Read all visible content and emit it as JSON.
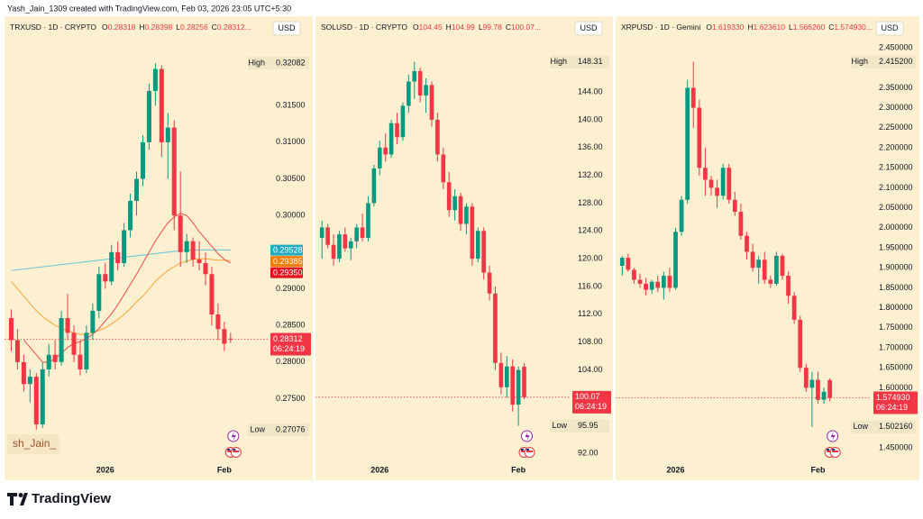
{
  "attribution": "Yash_Jain_1309 created with TradingView.com, Feb 03, 2026 23:05 UTC+5:30",
  "brand": "TradingView",
  "chart_data": [
    {
      "type": "candlestick",
      "symbol": "TRXUSD · 1D · CRYPTO",
      "quote": [
        {
          "label": "O",
          "text": "0.28318"
        },
        {
          "label": "H",
          "text": "0.28398"
        },
        {
          "label": "L",
          "text": "0.28256"
        },
        {
          "label": "C",
          "text": "0.28312..."
        }
      ],
      "currency": "USD",
      "watermark": "sh_Jain_",
      "up_color": "#089981",
      "down_color": "#f23645",
      "categories": [
        null,
        null,
        null,
        null,
        null,
        null,
        null,
        null,
        null,
        null,
        null,
        null,
        null,
        null,
        null,
        "2026",
        null,
        null,
        null,
        null,
        null,
        null,
        null,
        null,
        null,
        null,
        null,
        null,
        null,
        null,
        null,
        null,
        null,
        null,
        "Feb",
        null
      ],
      "ohlc": [
        [
          0.286,
          0.2872,
          0.2815,
          0.283
        ],
        [
          0.283,
          0.2845,
          0.279,
          0.28
        ],
        [
          0.28,
          0.281,
          0.276,
          0.277
        ],
        [
          0.277,
          0.279,
          0.2745,
          0.278
        ],
        [
          0.278,
          0.2785,
          0.2708,
          0.2715
        ],
        [
          0.2715,
          0.28,
          0.271,
          0.279
        ],
        [
          0.279,
          0.2825,
          0.278,
          0.281
        ],
        [
          0.281,
          0.283,
          0.279,
          0.28
        ],
        [
          0.28,
          0.287,
          0.2795,
          0.286
        ],
        [
          0.286,
          0.2893,
          0.283,
          0.284
        ],
        [
          0.284,
          0.285,
          0.28,
          0.281
        ],
        [
          0.281,
          0.283,
          0.2782,
          0.279
        ],
        [
          0.279,
          0.285,
          0.2785,
          0.284
        ],
        [
          0.284,
          0.288,
          0.283,
          0.287
        ],
        [
          0.287,
          0.293,
          0.286,
          0.292
        ],
        [
          0.292,
          0.2935,
          0.29,
          0.291
        ],
        [
          0.291,
          0.296,
          0.2905,
          0.295
        ],
        [
          0.295,
          0.2965,
          0.2925,
          0.2935
        ],
        [
          0.2935,
          0.299,
          0.293,
          0.298
        ],
        [
          0.298,
          0.303,
          0.297,
          0.302
        ],
        [
          0.302,
          0.306,
          0.3,
          0.305
        ],
        [
          0.305,
          0.311,
          0.304,
          0.31
        ],
        [
          0.31,
          0.318,
          0.309,
          0.317
        ],
        [
          0.317,
          0.3208,
          0.315,
          0.32
        ],
        [
          0.32,
          0.3205,
          0.308,
          0.31
        ],
        [
          0.31,
          0.314,
          0.305,
          0.312
        ],
        [
          0.312,
          0.313,
          0.298,
          0.3
        ],
        [
          0.3,
          0.306,
          0.293,
          0.295
        ],
        [
          0.295,
          0.2975,
          0.2935,
          0.2965
        ],
        [
          0.2965,
          0.297,
          0.293,
          0.294
        ],
        [
          0.294,
          0.2965,
          0.2925,
          0.2935
        ],
        [
          0.2935,
          0.295,
          0.2905,
          0.292
        ],
        [
          0.292,
          0.293,
          0.285,
          0.2865
        ],
        [
          0.2865,
          0.288,
          0.283,
          0.2845
        ],
        [
          0.2845,
          0.2855,
          0.2815,
          0.2825
        ],
        [
          0.2832,
          0.284,
          0.2826,
          0.2831
        ]
      ],
      "lines": [
        {
          "color": "#5fc6d6",
          "values": [
            0.2925,
            0.2926,
            0.2927,
            0.2928,
            0.2929,
            0.293,
            0.2931,
            0.2932,
            0.2933,
            0.2934,
            0.2935,
            0.2936,
            0.2937,
            0.2938,
            0.2939,
            0.294,
            0.2941,
            0.2942,
            0.2943,
            0.2944,
            0.2945,
            0.2946,
            0.2947,
            0.2948,
            0.2949,
            0.295,
            0.2951,
            0.2952,
            0.2953,
            0.2953,
            0.2953,
            0.2953,
            0.2953,
            0.2953,
            0.2953,
            0.29528
          ]
        },
        {
          "color": "#f7a43a",
          "values": [
            0.291,
            0.29,
            0.289,
            0.288,
            0.287,
            0.2862,
            0.2856,
            0.285,
            0.2846,
            0.2843,
            0.284,
            0.2838,
            0.2838,
            0.284,
            0.2843,
            0.2847,
            0.2852,
            0.2858,
            0.2865,
            0.2873,
            0.2882,
            0.289,
            0.29,
            0.291,
            0.2918,
            0.2925,
            0.293,
            0.2935,
            0.2938,
            0.294,
            0.2941,
            0.2941,
            0.294,
            0.2939,
            0.2939,
            0.29385
          ]
        },
        {
          "color": "#ef4a4a",
          "values": [
            null,
            null,
            0.283,
            0.282,
            0.281,
            0.28,
            0.28,
            0.2805,
            0.2812,
            0.282,
            0.2825,
            0.2828,
            0.2832,
            0.2838,
            0.2846,
            0.2856,
            0.2866,
            0.2878,
            0.2892,
            0.2906,
            0.292,
            0.2935,
            0.295,
            0.2965,
            0.2978,
            0.299,
            0.2998,
            0.3003,
            0.3,
            0.299,
            0.2978,
            0.2968,
            0.2958,
            0.2948,
            0.294,
            0.2935
          ]
        }
      ],
      "badges": [
        {
          "value": 0.29528,
          "color": "#22abc3"
        },
        {
          "value": 0.29385,
          "color": "#f57c00"
        },
        {
          "value": 0.2935,
          "value_label": "0.29350",
          "color": "#e4121f"
        }
      ],
      "high": {
        "label": "High",
        "value": 0.32082
      },
      "low": {
        "label": "Low",
        "value": 0.27076
      },
      "last_price": {
        "value": 0.28312,
        "countdown": "06:24:19",
        "color": "#f23645"
      },
      "ylim": [
        0.2667,
        0.3272
      ],
      "yticks": [
        {
          "value": 0.275,
          "label": "0.27500"
        },
        {
          "value": 0.28,
          "label": "0.28000"
        },
        {
          "value": 0.285,
          "label": "0.28500"
        },
        {
          "value": 0.29,
          "label": "0.29000"
        },
        {
          "value": 0.3,
          "label": "0.30000"
        },
        {
          "value": 0.305,
          "label": "0.30500"
        },
        {
          "value": 0.31,
          "label": "0.31000"
        },
        {
          "value": 0.315,
          "label": "0.31500"
        }
      ]
    },
    {
      "type": "candlestick",
      "symbol": "SOLUSD · 1D · CRYPTO",
      "quote": [
        {
          "label": "O",
          "text": "104.45"
        },
        {
          "label": "H",
          "text": "104.99"
        },
        {
          "label": "L",
          "text": "99.78"
        },
        {
          "label": "C",
          "text": "100.07..."
        }
      ],
      "currency": "USD",
      "up_color": "#089981",
      "down_color": "#f23645",
      "categories": [
        null,
        null,
        null,
        null,
        null,
        null,
        null,
        null,
        null,
        null,
        "2026",
        null,
        null,
        null,
        null,
        null,
        null,
        null,
        null,
        null,
        null,
        null,
        null,
        null,
        null,
        null,
        null,
        null,
        null,
        null,
        null,
        null,
        null,
        null,
        "Feb",
        null
      ],
      "ohlc": [
        [
          123.0,
          125.5,
          120.0,
          124.5
        ],
        [
          124.5,
          125.0,
          121.5,
          122.0
        ],
        [
          122.0,
          123.5,
          119.0,
          120.0
        ],
        [
          120.0,
          124.0,
          119.5,
          123.5
        ],
        [
          123.5,
          124.5,
          121.0,
          121.5
        ],
        [
          121.5,
          123.0,
          119.8,
          122.5
        ],
        [
          122.5,
          125.0,
          121.5,
          124.5
        ],
        [
          124.5,
          126.5,
          122.5,
          123.0
        ],
        [
          123.0,
          129.0,
          122.5,
          128.0
        ],
        [
          128.0,
          133.5,
          127.5,
          133.0
        ],
        [
          133.0,
          137.0,
          132.0,
          136.0
        ],
        [
          136.0,
          138.0,
          134.0,
          135.0
        ],
        [
          135.0,
          140.0,
          134.5,
          139.5
        ],
        [
          139.5,
          141.0,
          136.5,
          137.5
        ],
        [
          137.5,
          142.5,
          137.0,
          142.0
        ],
        [
          142.0,
          146.5,
          141.0,
          145.5
        ],
        [
          145.5,
          148.31,
          143.0,
          147.0
        ],
        [
          147.0,
          147.5,
          142.5,
          143.5
        ],
        [
          143.5,
          146.0,
          141.0,
          145.0
        ],
        [
          145.0,
          145.5,
          139.0,
          140.0
        ],
        [
          140.0,
          141.0,
          134.0,
          135.0
        ],
        [
          135.0,
          136.0,
          130.0,
          131.0
        ],
        [
          131.0,
          132.5,
          126.0,
          127.0
        ],
        [
          127.0,
          130.0,
          125.5,
          129.0
        ],
        [
          129.0,
          129.5,
          124.0,
          125.0
        ],
        [
          125.0,
          128.0,
          123.5,
          127.5
        ],
        [
          127.5,
          128.0,
          119.0,
          120.0
        ],
        [
          120.0,
          124.5,
          119.5,
          124.0
        ],
        [
          124.0,
          124.5,
          117.0,
          118.0
        ],
        [
          118.0,
          119.0,
          114.0,
          115.0
        ],
        [
          115.0,
          116.0,
          104.0,
          105.0
        ],
        [
          105.0,
          106.5,
          100.5,
          101.5
        ],
        [
          101.5,
          106.0,
          100.0,
          104.5
        ],
        [
          104.5,
          105.5,
          98.0,
          99.0
        ],
        [
          99.0,
          104.5,
          95.95,
          104.0
        ],
        [
          104.45,
          104.99,
          99.78,
          100.07
        ]
      ],
      "high": {
        "label": "High",
        "value": 148.31
      },
      "low": {
        "label": "Low",
        "value": 95.95
      },
      "last_price": {
        "value": 100.07,
        "countdown": "06:24:19",
        "color": "#f23645"
      },
      "ylim": [
        91.1,
        154.9
      ],
      "yticks": [
        {
          "value": 92,
          "label": "92.00"
        },
        {
          "value": 104,
          "label": "104.00"
        },
        {
          "value": 108,
          "label": "108.00"
        },
        {
          "value": 112,
          "label": "112.00"
        },
        {
          "value": 116,
          "label": "116.00"
        },
        {
          "value": 120,
          "label": "120.00"
        },
        {
          "value": 124,
          "label": "124.00"
        },
        {
          "value": 128,
          "label": "128.00"
        },
        {
          "value": 132,
          "label": "132.00"
        },
        {
          "value": 136,
          "label": "136.00"
        },
        {
          "value": 140,
          "label": "140.00"
        },
        {
          "value": 144,
          "label": "144.00"
        }
      ]
    },
    {
      "type": "candlestick",
      "symbol": "XRPUSD · 1D · Gemini",
      "quote": [
        {
          "label": "O",
          "text": "1.619330"
        },
        {
          "label": "H",
          "text": "1.623610"
        },
        {
          "label": "L",
          "text": "1.566260"
        },
        {
          "label": "C",
          "text": "1.574930..."
        }
      ],
      "currency": "USD",
      "up_color": "#089981",
      "down_color": "#f23645",
      "categories": [
        null,
        null,
        null,
        null,
        null,
        null,
        null,
        null,
        null,
        "2026",
        null,
        null,
        null,
        null,
        null,
        null,
        null,
        null,
        null,
        null,
        null,
        null,
        null,
        null,
        null,
        null,
        null,
        null,
        null,
        null,
        null,
        null,
        null,
        "Feb",
        null,
        null
      ],
      "ohlc": [
        [
          1.905,
          1.93,
          1.88,
          1.925
        ],
        [
          1.925,
          1.935,
          1.89,
          1.895
        ],
        [
          1.895,
          1.9,
          1.86,
          1.87
        ],
        [
          1.87,
          1.885,
          1.85,
          1.86
        ],
        [
          1.86,
          1.875,
          1.83,
          1.845
        ],
        [
          1.845,
          1.87,
          1.835,
          1.865
        ],
        [
          1.865,
          1.88,
          1.84,
          1.85
        ],
        [
          1.85,
          1.89,
          1.82,
          1.88
        ],
        [
          1.88,
          1.9,
          1.84,
          1.85
        ],
        [
          1.85,
          2.0,
          1.845,
          1.99
        ],
        [
          1.99,
          2.08,
          1.98,
          2.07
        ],
        [
          2.07,
          2.37,
          2.06,
          2.35
        ],
        [
          2.35,
          2.4152,
          2.25,
          2.3
        ],
        [
          2.3,
          2.32,
          2.13,
          2.15
        ],
        [
          2.15,
          2.2,
          2.08,
          2.12
        ],
        [
          2.12,
          2.13,
          2.08,
          2.1
        ],
        [
          2.1,
          2.12,
          2.05,
          2.08
        ],
        [
          2.08,
          2.16,
          2.07,
          2.15
        ],
        [
          2.15,
          2.16,
          2.06,
          2.07
        ],
        [
          2.07,
          2.09,
          2.03,
          2.04
        ],
        [
          2.04,
          2.06,
          1.97,
          1.98
        ],
        [
          1.98,
          1.99,
          1.92,
          1.94
        ],
        [
          1.94,
          1.96,
          1.89,
          1.9
        ],
        [
          1.9,
          1.93,
          1.86,
          1.92
        ],
        [
          1.92,
          1.94,
          1.86,
          1.87
        ],
        [
          1.87,
          1.88,
          1.85,
          1.86
        ],
        [
          1.86,
          1.94,
          1.855,
          1.93
        ],
        [
          1.93,
          1.935,
          1.87,
          1.88
        ],
        [
          1.88,
          1.89,
          1.81,
          1.83
        ],
        [
          1.83,
          1.84,
          1.76,
          1.77
        ],
        [
          1.77,
          1.78,
          1.64,
          1.65
        ],
        [
          1.65,
          1.66,
          1.59,
          1.6
        ],
        [
          1.6,
          1.64,
          1.50216,
          1.62
        ],
        [
          1.62,
          1.64,
          1.56,
          1.57
        ],
        [
          1.57,
          1.6,
          1.56,
          1.59
        ],
        [
          1.61933,
          1.62361,
          1.56626,
          1.57493
        ]
      ],
      "high": {
        "label": "High",
        "value": 2.4152,
        "value_label": "2.415200"
      },
      "low": {
        "label": "Low",
        "value": 1.50216,
        "value_label": "1.502160"
      },
      "last_price": {
        "value": 1.57493,
        "value_label": "1.574930",
        "countdown": "06:24:19",
        "color": "#f23645"
      },
      "ylim": [
        1.4207,
        2.5288
      ],
      "yticks": [
        {
          "value": 1.45,
          "label": "1.450000"
        },
        {
          "value": 1.6,
          "label": "1.600000"
        },
        {
          "value": 1.65,
          "label": "1.650000"
        },
        {
          "value": 1.7,
          "label": "1.700000"
        },
        {
          "value": 1.75,
          "label": "1.750000"
        },
        {
          "value": 1.8,
          "label": "1.800000"
        },
        {
          "value": 1.85,
          "label": "1.850000"
        },
        {
          "value": 1.9,
          "label": "1.900000"
        },
        {
          "value": 1.95,
          "label": "1.950000"
        },
        {
          "value": 2.0,
          "label": "2.000000"
        },
        {
          "value": 2.05,
          "label": "2.050000"
        },
        {
          "value": 2.1,
          "label": "2.100000"
        },
        {
          "value": 2.15,
          "label": "2.150000"
        },
        {
          "value": 2.2,
          "label": "2.200000"
        },
        {
          "value": 2.25,
          "label": "2.250000"
        },
        {
          "value": 2.3,
          "label": "2.300000"
        },
        {
          "value": 2.35,
          "label": "2.350000"
        },
        {
          "value": 2.45,
          "label": "2.450000"
        }
      ]
    }
  ]
}
